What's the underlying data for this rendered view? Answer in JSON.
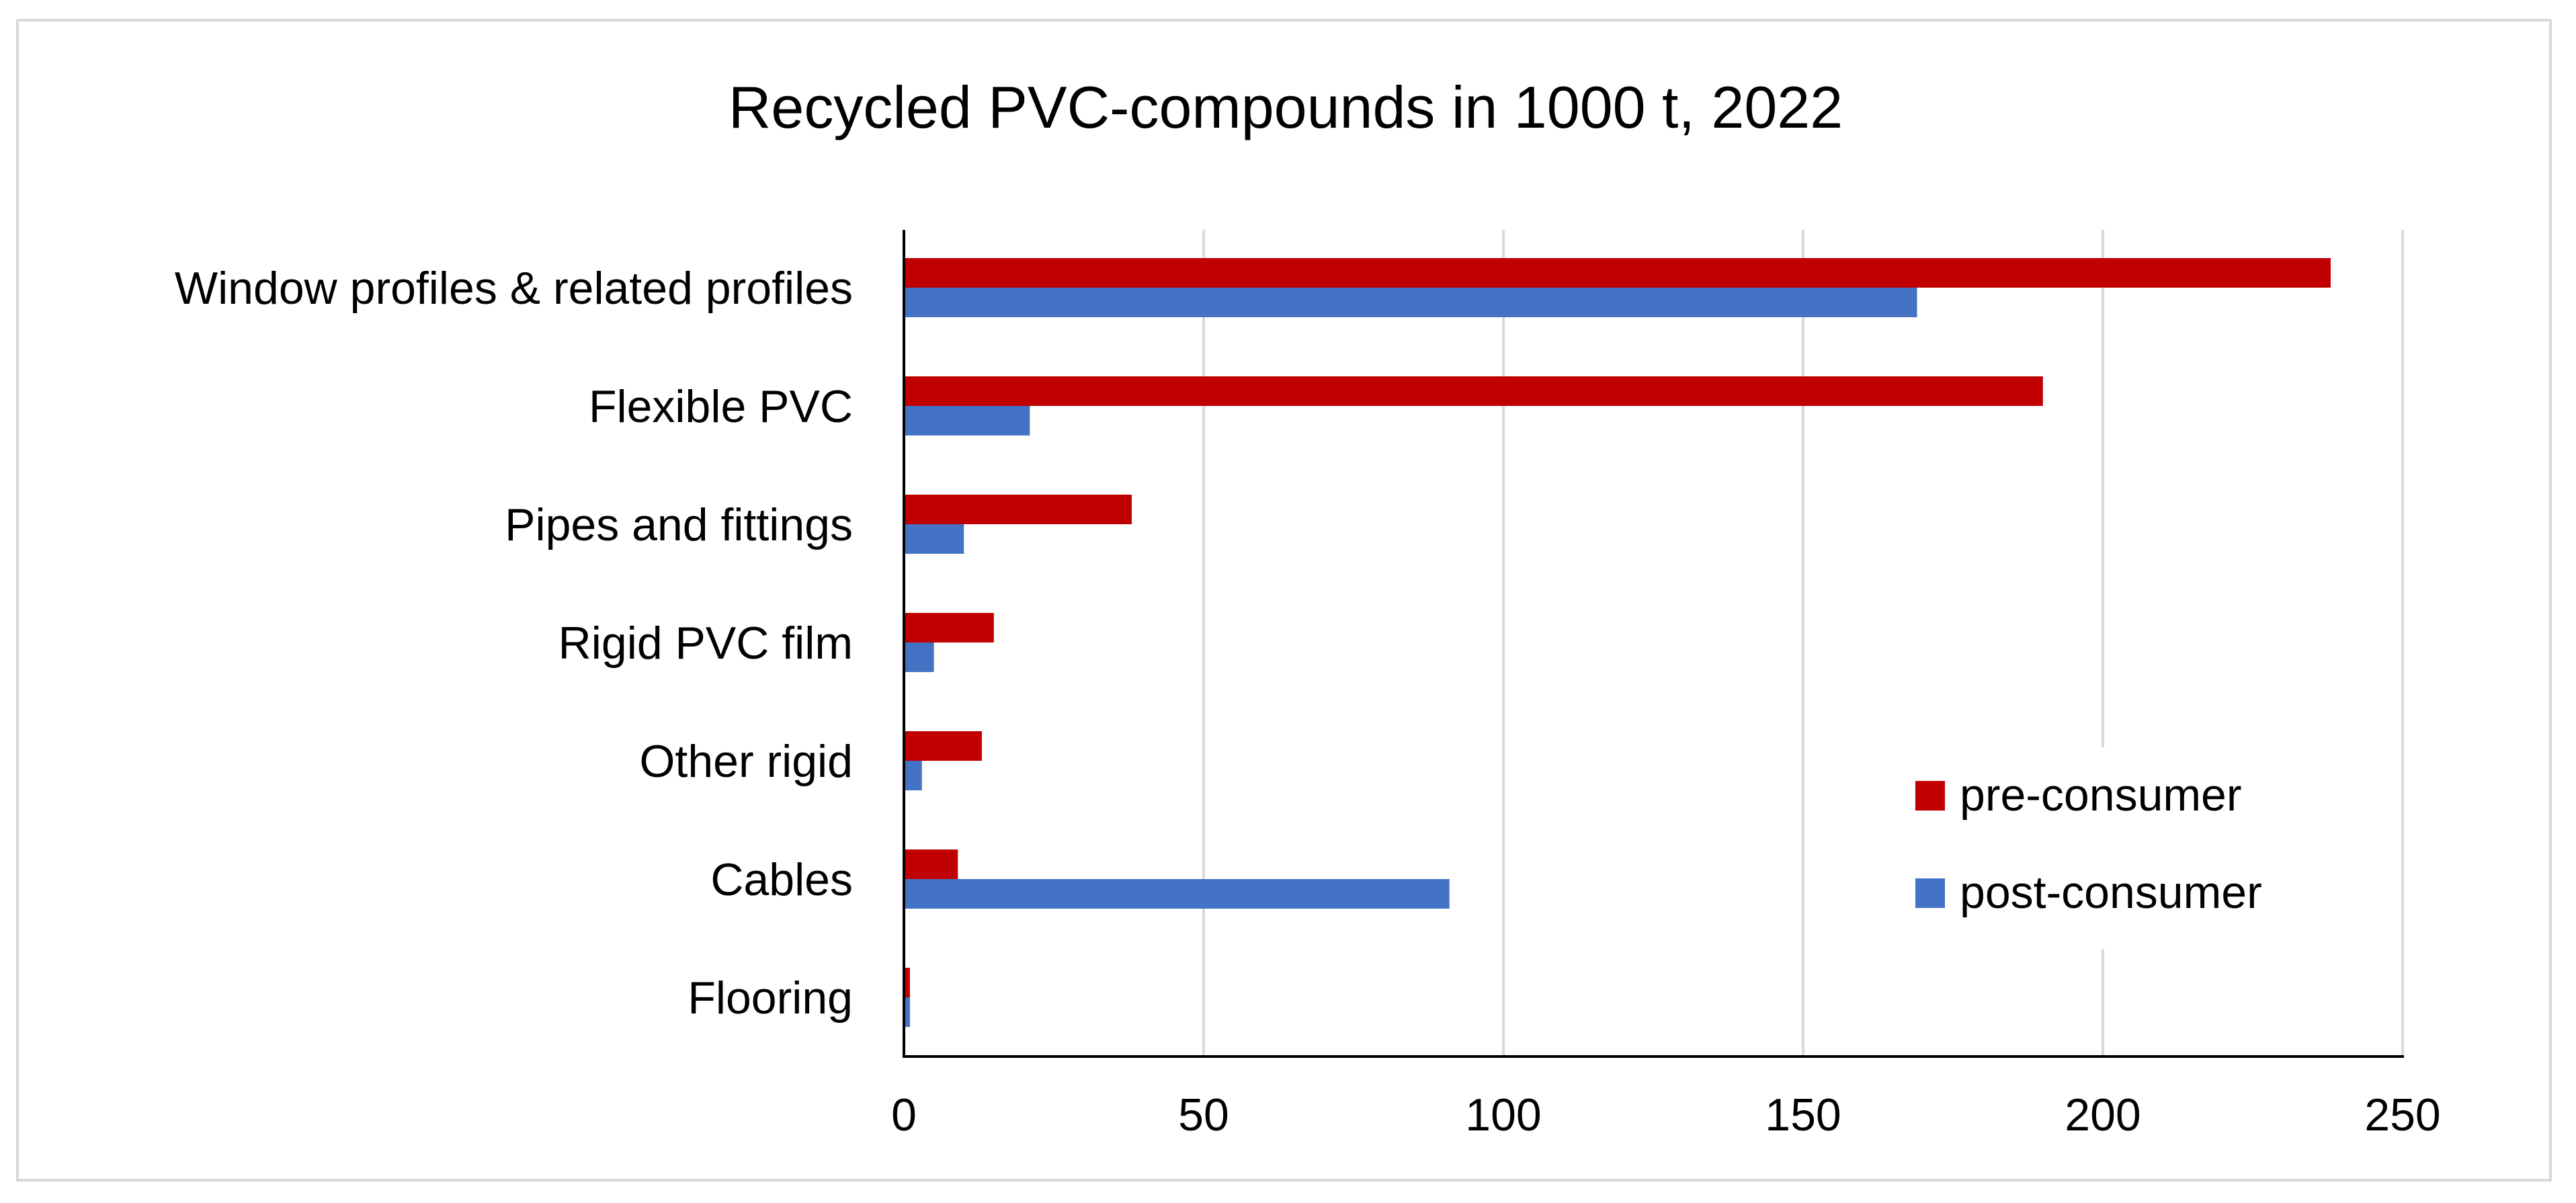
{
  "chart_data": {
    "type": "bar",
    "orientation": "horizontal",
    "title": "Recycled PVC-compounds in 1000 t, 2022",
    "xlabel": "",
    "ylabel": "",
    "xlim": [
      0,
      250
    ],
    "x_ticks": [
      0,
      50,
      100,
      150,
      200,
      250
    ],
    "grid": true,
    "legend_position": "right",
    "categories": [
      "Window profiles & related profiles",
      "Flexible PVC",
      "Pipes and fittings",
      "Rigid PVC film",
      "Other rigid",
      "Cables",
      "Flooring"
    ],
    "series": [
      {
        "name": "pre-consumer",
        "color": "#c00000",
        "values": [
          238,
          190,
          38,
          15,
          13,
          9,
          1
        ]
      },
      {
        "name": "post-consumer",
        "color": "#4472c4",
        "values": [
          169,
          21,
          10,
          5,
          3,
          91,
          1
        ]
      }
    ]
  }
}
